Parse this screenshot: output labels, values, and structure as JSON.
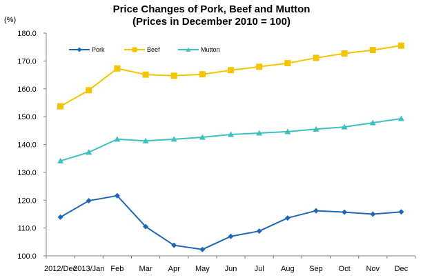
{
  "chart_data": {
    "type": "line",
    "title": "Price Changes of Pork, Beef and Mutton",
    "subtitle": "(Prices in December 2010 = 100)",
    "ylabel": "(%)",
    "xlabel": "",
    "ylim": [
      100,
      180
    ],
    "yticks": [
      "100.0",
      "110.0",
      "120.0",
      "130.0",
      "140.0",
      "150.0",
      "160.0",
      "170.0",
      "180.0"
    ],
    "categories": [
      "2012/Dec",
      "2013/Jan",
      "Feb",
      "Mar",
      "Apr",
      "May",
      "Jun",
      "Jul",
      "Aug",
      "Sep",
      "Oct",
      "Nov",
      "Dec"
    ],
    "grid": false,
    "legend_position": "top-left",
    "series": [
      {
        "name": "Pork",
        "color": "#1f66b8",
        "marker": "diamond",
        "values": [
          113.9,
          119.8,
          121.6,
          110.5,
          103.8,
          102.3,
          107.0,
          108.9,
          113.6,
          116.2,
          115.7,
          115.0,
          115.8
        ]
      },
      {
        "name": "Beef",
        "color": "#f2c500",
        "marker": "square",
        "values": [
          153.7,
          159.5,
          167.3,
          165.1,
          164.7,
          165.2,
          166.7,
          167.9,
          169.2,
          171.1,
          172.7,
          173.9,
          175.5
        ]
      },
      {
        "name": "Mutton",
        "color": "#3cc0c0",
        "marker": "triangle",
        "values": [
          134.1,
          137.2,
          141.9,
          141.3,
          141.9,
          142.6,
          143.6,
          144.1,
          144.6,
          145.5,
          146.3,
          147.8,
          149.3
        ]
      }
    ]
  }
}
